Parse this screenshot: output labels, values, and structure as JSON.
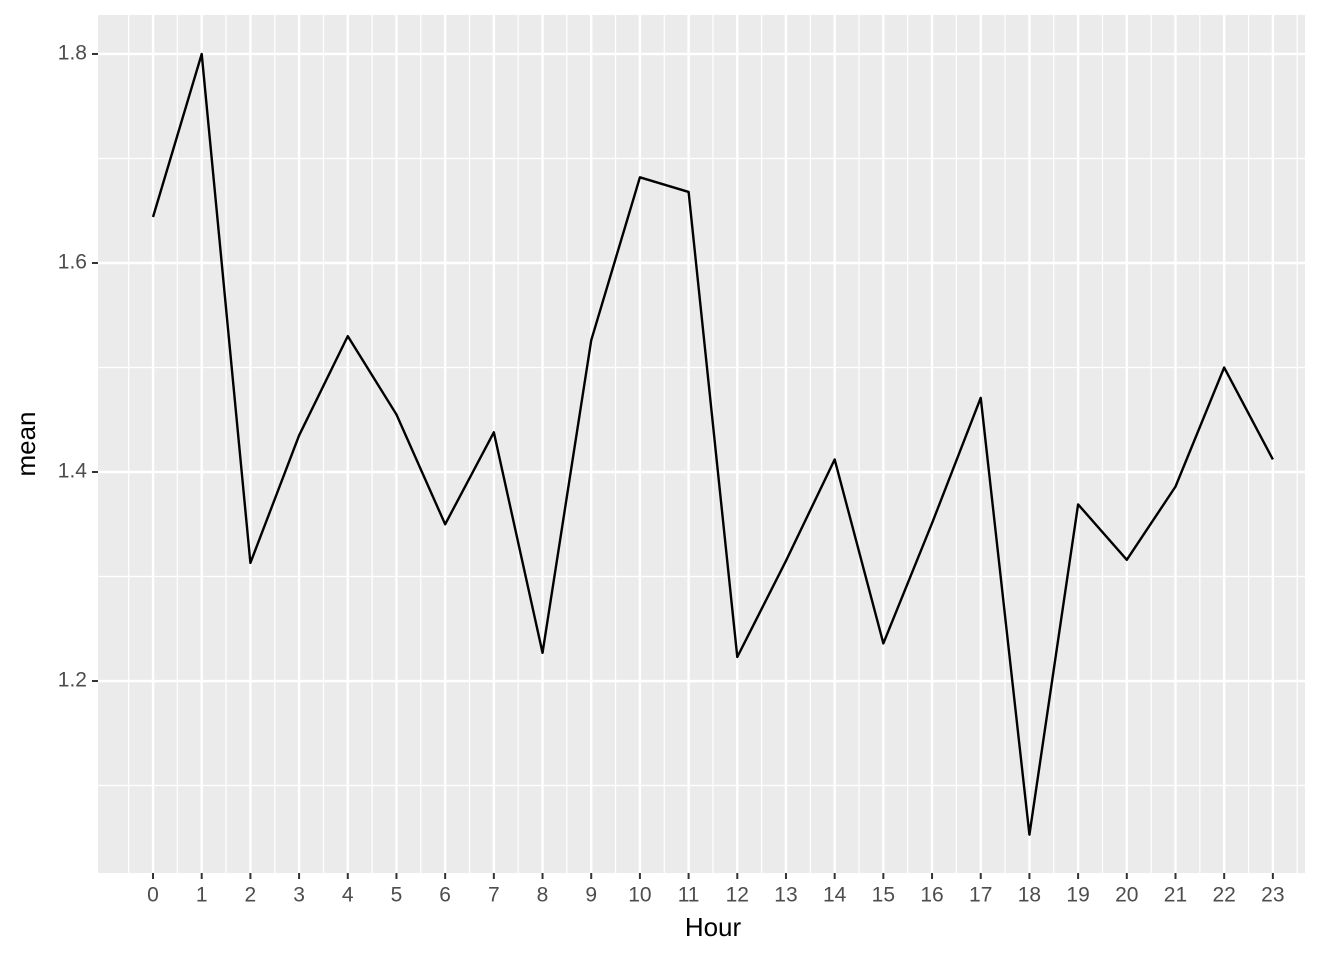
{
  "chart_data": {
    "type": "line",
    "x_label": "Hour",
    "y_label": "mean",
    "x": [
      0,
      1,
      2,
      3,
      4,
      5,
      6,
      7,
      8,
      9,
      10,
      11,
      12,
      13,
      14,
      15,
      16,
      17,
      18,
      19,
      20,
      21,
      22,
      23
    ],
    "series": [
      {
        "color": "#000000",
        "values": [
          1.644,
          1.8,
          1.313,
          1.435,
          1.53,
          1.455,
          1.35,
          1.438,
          1.227,
          1.526,
          1.682,
          1.668,
          1.223,
          1.315,
          1.412,
          1.236,
          1.351,
          1.471,
          1.053,
          1.369,
          1.316,
          1.386,
          1.5,
          1.412
        ]
      }
    ],
    "xlim": [
      -1.13,
      23.66
    ],
    "xticks": [
      0,
      1,
      2,
      3,
      4,
      5,
      6,
      7,
      8,
      9,
      10,
      11,
      12,
      13,
      14,
      15,
      16,
      17,
      18,
      19,
      20,
      21,
      22,
      23
    ],
    "ylim": [
      1.0163,
      1.8373
    ],
    "yticks": [
      1.2,
      1.4,
      1.6,
      1.8
    ],
    "grid": true
  }
}
